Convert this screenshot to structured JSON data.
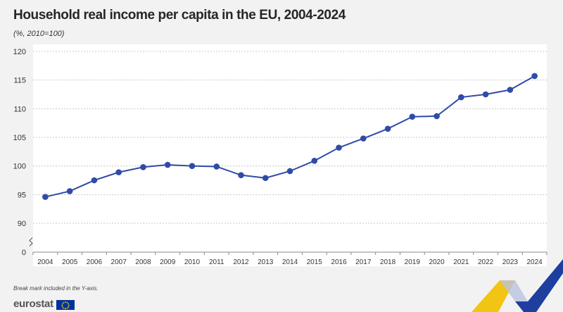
{
  "header": {
    "title": "Household real income per capita in the EU, 2004-2024",
    "subtitle": "(%, 2010=100)"
  },
  "footer": {
    "note": "Break mark included in the Y-axis.",
    "logo_text": "eurostat"
  },
  "colors": {
    "line": "#2f4ba8",
    "grid": "#c8c8c8",
    "accent_yellow": "#f2c413",
    "accent_blue": "#1f3f9f"
  },
  "chart_data": {
    "type": "line",
    "title": "Household real income per capita in the EU, 2004-2024",
    "subtitle": "(%, 2010=100)",
    "categories": [
      "2004",
      "2005",
      "2006",
      "2007",
      "2008",
      "2009",
      "2010",
      "2011",
      "2012",
      "2013",
      "2014",
      "2015",
      "2016",
      "2017",
      "2018",
      "2019",
      "2020",
      "2021",
      "2022",
      "2023",
      "2024"
    ],
    "series": [
      {
        "values": [
          94.6,
          95.6,
          97.5,
          98.9,
          99.8,
          100.2,
          100.0,
          99.9,
          98.4,
          97.9,
          99.1,
          100.9,
          103.2,
          104.8,
          106.5,
          108.6,
          108.7,
          112.0,
          112.5,
          113.3,
          115.7
        ]
      }
    ],
    "yticks": [
      0,
      90,
      95,
      100,
      105,
      110,
      115,
      120
    ],
    "ylim": [
      90,
      120
    ],
    "y_axis_break": true,
    "grid": "horizontal dashed",
    "legend": "none"
  }
}
